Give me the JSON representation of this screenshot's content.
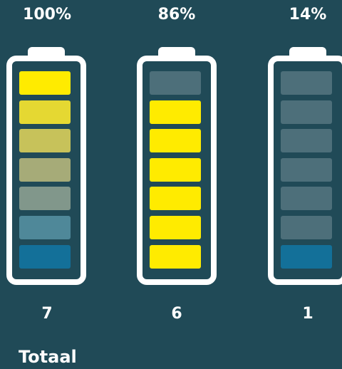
{
  "batteries": [
    {
      "percent_label": "100%",
      "count_label": "7",
      "cells": [
        "#ffeb00",
        "#e5d832",
        "#c7c25a",
        "#a6ab78",
        "#81978b",
        "#4f8899",
        "#137099"
      ]
    },
    {
      "percent_label": "86%",
      "count_label": "6",
      "cells": [
        "#4d6f7a",
        "#ffeb00",
        "#ffeb00",
        "#ffeb00",
        "#ffeb00",
        "#ffeb00",
        "#ffeb00"
      ]
    },
    {
      "percent_label": "14%",
      "count_label": "1",
      "cells": [
        "#4d6f7a",
        "#4d6f7a",
        "#4d6f7a",
        "#4d6f7a",
        "#4d6f7a",
        "#4d6f7a",
        "#137099"
      ]
    }
  ],
  "footer": {
    "total_label": "Totaal"
  },
  "colors": {
    "background": "#204a57",
    "battery_outline": "#ffffff",
    "cell_full": "#ffeb00",
    "cell_empty": "#4d6f7a",
    "cell_base": "#137099"
  }
}
